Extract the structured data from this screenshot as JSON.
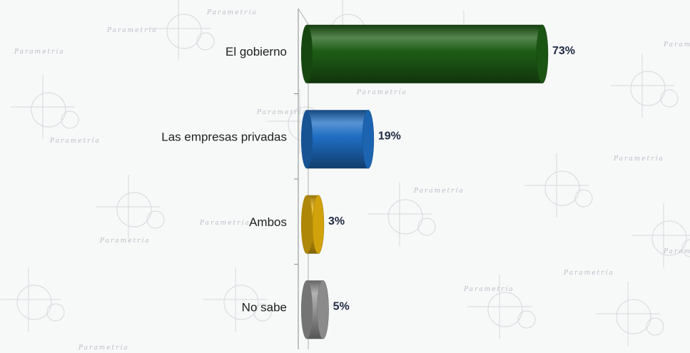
{
  "chart_data": {
    "type": "bar",
    "orientation": "horizontal",
    "categories": [
      "El gobierno",
      "Las empresas privadas",
      "Ambos",
      "No sabe"
    ],
    "values": [
      73,
      19,
      3,
      5
    ],
    "value_labels": [
      "73%",
      "19%",
      "3%",
      "5%"
    ],
    "colors": [
      "#1e5e16",
      "#1f6fc4",
      "#e8b40c",
      "#9a9a9a"
    ],
    "xlim": [
      0,
      73
    ],
    "grid": false,
    "legend": "none"
  },
  "watermark": {
    "text": "Parametría",
    "color": "#b9c0c7"
  }
}
